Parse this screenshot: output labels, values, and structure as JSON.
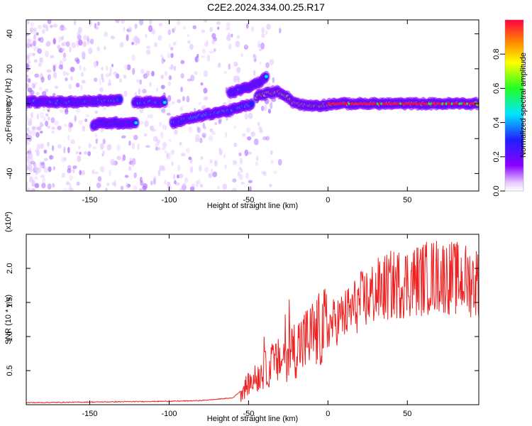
{
  "title": "C2E2.2024.334.00.25.R17",
  "chart_data": [
    {
      "type": "heatmap",
      "xlabel": "Height of straight line (km)",
      "ylabel": "Frequency (Hz)",
      "xlim": [
        -190,
        95
      ],
      "ylim": [
        -50,
        48
      ],
      "xticks": [
        -150,
        -100,
        -50,
        0,
        50
      ],
      "yticks": [
        -40,
        -20,
        0,
        20,
        40
      ],
      "colorbar": {
        "label": "Normalized spectral amplitude",
        "range": [
          0,
          1
        ],
        "ticks": [
          0.0,
          0.2,
          0.4,
          0.6,
          0.8
        ]
      },
      "ridge_segments": [
        {
          "x": [
            -190,
            -178,
            -160,
            -140,
            -130
          ],
          "y": [
            1,
            1,
            1,
            2,
            2
          ],
          "amplitude": 0.4
        },
        {
          "x": [
            -148,
            -140,
            -130,
            -120
          ],
          "y": [
            -12,
            -11,
            -11,
            -11
          ],
          "amplitude": 0.35
        },
        {
          "x": [
            -122,
            -115,
            -110,
            -102
          ],
          "y": [
            1,
            1,
            1,
            1
          ],
          "amplitude": 0.4
        },
        {
          "x": [
            -98,
            -90,
            -80,
            -70,
            -62,
            -55,
            -47
          ],
          "y": [
            -11,
            -9,
            -7,
            -5,
            -4,
            -2,
            0
          ],
          "amplitude": 0.45
        },
        {
          "x": [
            -62,
            -55,
            -48,
            -42,
            -38
          ],
          "y": [
            6,
            8,
            10,
            13,
            16
          ],
          "amplitude": 0.35
        },
        {
          "x": [
            -45,
            -38,
            -32,
            -27,
            -22,
            -15,
            -5,
            5,
            20,
            40,
            60,
            80,
            95
          ],
          "y": [
            4,
            6,
            7,
            5,
            1,
            -1,
            -1,
            0,
            0,
            0,
            0,
            0,
            0
          ],
          "amplitude": 0.9
        }
      ]
    },
    {
      "type": "line",
      "xlabel": "Height of straight line (km)",
      "ylabel": "SNR (10 * v/v)",
      "multiplier": "(x10^4)",
      "xlim": [
        -190,
        95
      ],
      "ylim": [
        0,
        2.5
      ],
      "xticks": [
        -150,
        -100,
        -50,
        0,
        50
      ],
      "yticks": [
        0.5,
        1.0,
        1.5,
        2.0
      ],
      "color": "#ee2222",
      "envelope": {
        "x": [
          -190,
          -100,
          -80,
          -60,
          -50,
          -40,
          -30,
          -20,
          -10,
          0,
          10,
          20,
          30,
          40,
          50,
          60,
          70,
          80,
          95
        ],
        "y": [
          0.03,
          0.05,
          0.06,
          0.1,
          0.3,
          0.5,
          0.65,
          0.85,
          1.0,
          1.15,
          1.3,
          1.5,
          1.65,
          1.75,
          1.8,
          1.85,
          1.9,
          1.85,
          1.8
        ]
      }
    }
  ]
}
